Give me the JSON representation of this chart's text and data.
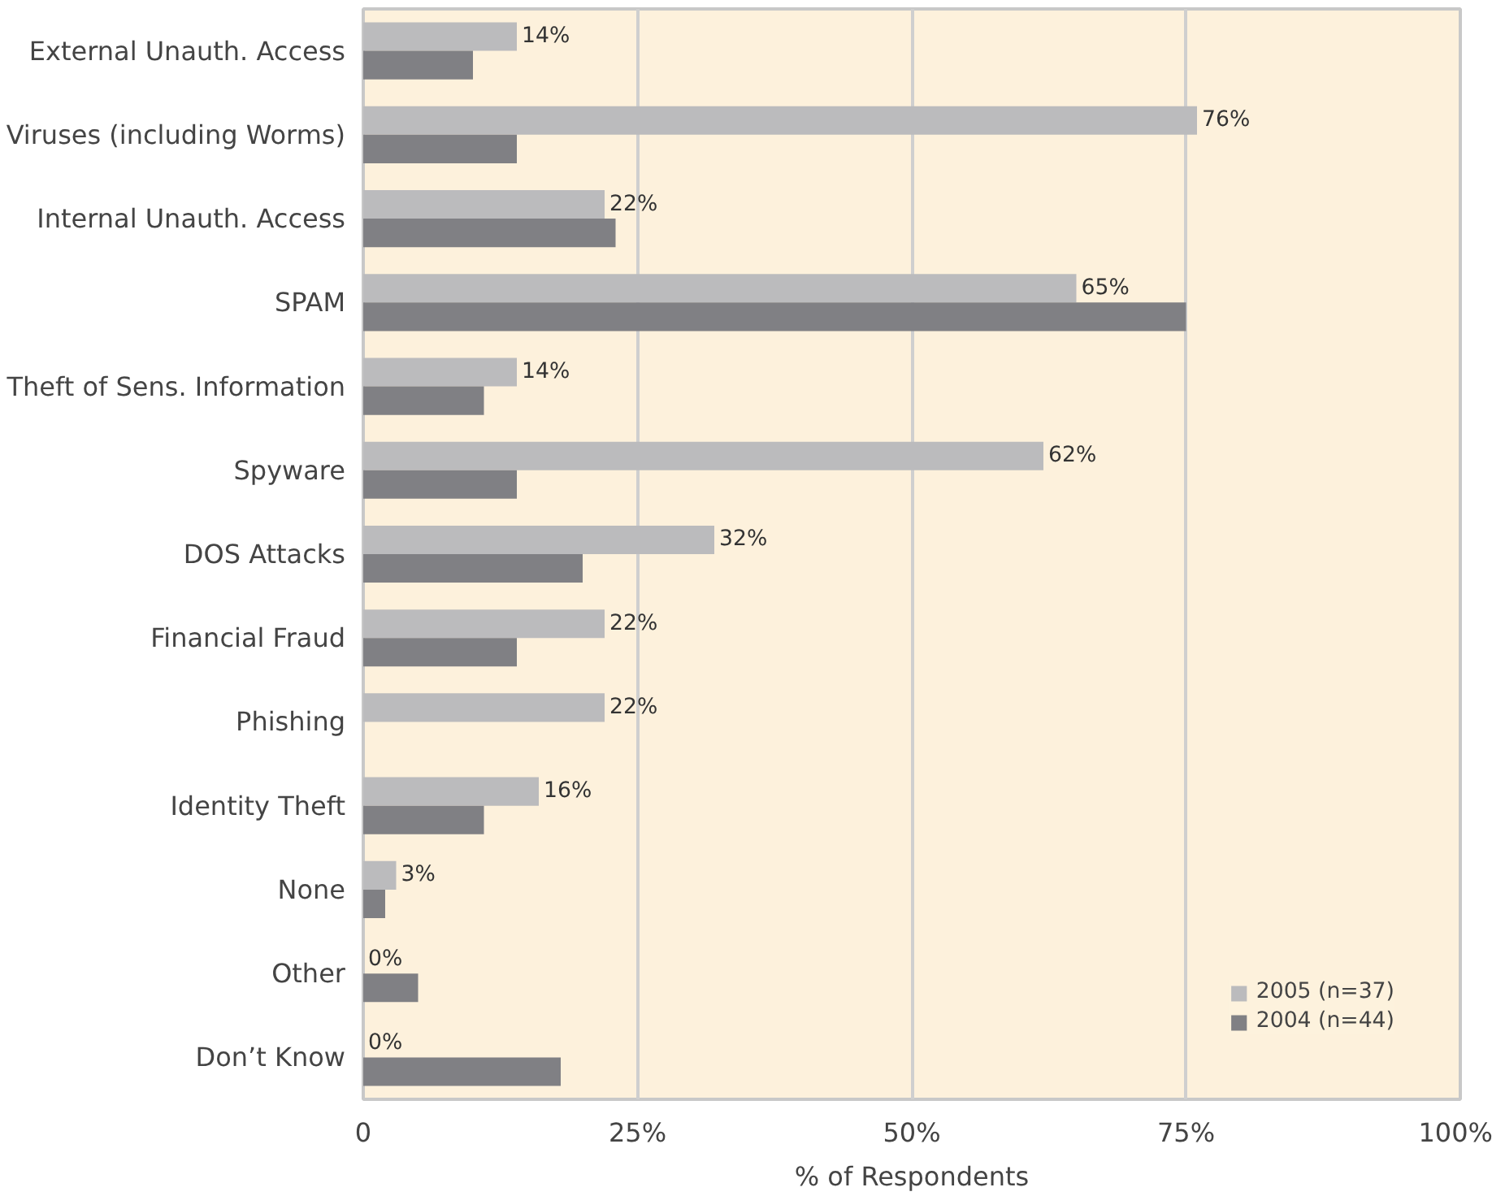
{
  "chart_data": {
    "type": "bar",
    "orientation": "horizontal",
    "xlabel": "% of Respondents",
    "categories": [
      "External Unauth. Access",
      "Viruses (including Worms)",
      "Internal Unauth. Access",
      "SPAM",
      "Theft of Sens. Information",
      "Spyware",
      "DOS Attacks",
      "Financial Fraud",
      "Phishing",
      "Identity Theft",
      "None",
      "Other",
      "Don’t Know"
    ],
    "series": [
      {
        "name": "2005 (n=37)",
        "color": "#bbbbbd",
        "values": [
          14,
          76,
          22,
          65,
          14,
          62,
          32,
          22,
          22,
          16,
          3,
          0,
          0
        ],
        "value_labels": [
          "14%",
          "76%",
          "22%",
          "65%",
          "14%",
          "62%",
          "32%",
          "22%",
          "22%",
          "16%",
          "3%",
          "0%",
          "0%"
        ]
      },
      {
        "name": "2004 (n=44)",
        "color": "#808084",
        "values": [
          10,
          14,
          23,
          75,
          11,
          14,
          20,
          14,
          null,
          11,
          2,
          5,
          18
        ]
      }
    ],
    "xlim": [
      0,
      100
    ],
    "xticks": [
      0,
      {
        "value": 25,
        "label": "25%"
      },
      {
        "value": 50,
        "label": "50%"
      },
      {
        "value": 75,
        "label": "75%"
      },
      {
        "value": 100,
        "label": "100%"
      }
    ],
    "grid": "x",
    "legend": "bottom right"
  }
}
